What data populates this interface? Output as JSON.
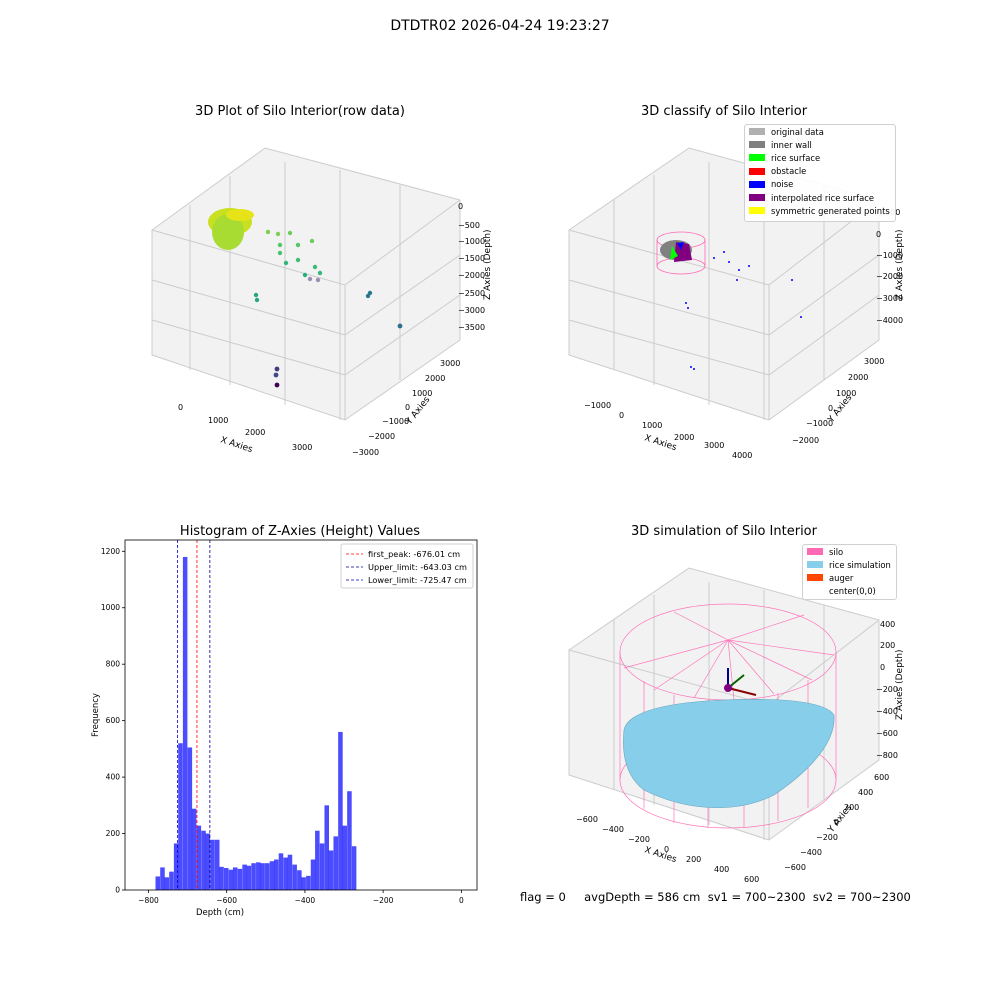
{
  "suptitle": "DTDTR02 2026-04-24 19:23:27",
  "panels": {
    "p1": {
      "title": "3D Plot of Silo Interior(row data)",
      "xlabel": "X Axies",
      "ylabel": "Y Axies",
      "zlabel": "Z Axies (Depth)",
      "xticks": [
        "0",
        "1000",
        "2000",
        "3000"
      ],
      "yticks": [
        "3000",
        "2000",
        "1000",
        "0",
        "−1000",
        "−2000",
        "−3000"
      ],
      "zticks": [
        "0",
        "−500",
        "−1000",
        "−1500",
        "−2000",
        "−2500",
        "−3000",
        "−3500"
      ]
    },
    "p2": {
      "title": "3D classify of Silo Interior",
      "xlabel": "X Axies",
      "ylabel": "Y Axies",
      "zlabel": "Z Axies (Depth)",
      "xticks": [
        "−1000",
        "0",
        "1000",
        "2000",
        "3000",
        "4000"
      ],
      "yticks": [
        "3000",
        "2000",
        "1000",
        "0",
        "−1000",
        "−2000"
      ],
      "zticks": [
        "2000",
        "0",
        "−1000",
        "−2000",
        "−3000",
        "−4000"
      ],
      "legend": [
        {
          "label": "original data",
          "color": "#b0b0b0"
        },
        {
          "label": "inner wall",
          "color": "#808080"
        },
        {
          "label": "rice surface",
          "color": "#00ff00"
        },
        {
          "label": "obstacle",
          "color": "#ff0000"
        },
        {
          "label": "noise",
          "color": "#0000ff"
        },
        {
          "label": "interpolated rice surface",
          "color": "#800080"
        },
        {
          "label": "symmetric generated points",
          "color": "#ffff00"
        }
      ]
    },
    "p4": {
      "title": "3D simulation of Silo Interior",
      "xlabel": "X Axies",
      "ylabel": "Y Axies",
      "zlabel": "Z Axies (Depth)",
      "xticks": [
        "−600",
        "−400",
        "−200",
        "0",
        "200",
        "400",
        "600"
      ],
      "yticks": [
        "600",
        "400",
        "200",
        "0",
        "−200",
        "−400",
        "−600"
      ],
      "zticks": [
        "400",
        "200",
        "0",
        "−200",
        "−400",
        "−600",
        "−800"
      ],
      "legend": [
        {
          "label": "silo",
          "color": "#ff69b4"
        },
        {
          "label": "rice simulation",
          "color": "#87ceeb"
        },
        {
          "label": "auger",
          "color": "#ff4500"
        },
        {
          "label": "center(0,0)",
          "color": "#ffffff"
        }
      ]
    }
  },
  "chart_data": {
    "type": "bar",
    "title": "Histogram of Z-Axies (Height) Values",
    "xlabel": "Depth (cm)",
    "ylabel": "Frequency",
    "xlim": [
      -860,
      40
    ],
    "ylim": [
      0,
      1240
    ],
    "xticks": [
      -800,
      -600,
      -400,
      -200,
      0
    ],
    "yticks": [
      0,
      200,
      400,
      600,
      800,
      1000,
      1200
    ],
    "bar_color": "#0000ff",
    "bin_width": 11.6,
    "bins": [
      {
        "x": -782,
        "v": 48
      },
      {
        "x": -770,
        "v": 80
      },
      {
        "x": -759,
        "v": 45
      },
      {
        "x": -747,
        "v": 65
      },
      {
        "x": -735,
        "v": 165
      },
      {
        "x": -724,
        "v": 520
      },
      {
        "x": -712,
        "v": 1180
      },
      {
        "x": -700,
        "v": 505
      },
      {
        "x": -689,
        "v": 288
      },
      {
        "x": -677,
        "v": 228
      },
      {
        "x": -665,
        "v": 210
      },
      {
        "x": -654,
        "v": 200
      },
      {
        "x": -642,
        "v": 178
      },
      {
        "x": -630,
        "v": 178
      },
      {
        "x": -619,
        "v": 82
      },
      {
        "x": -607,
        "v": 78
      },
      {
        "x": -595,
        "v": 72
      },
      {
        "x": -584,
        "v": 80
      },
      {
        "x": -572,
        "v": 75
      },
      {
        "x": -560,
        "v": 90
      },
      {
        "x": -549,
        "v": 86
      },
      {
        "x": -537,
        "v": 95
      },
      {
        "x": -525,
        "v": 98
      },
      {
        "x": -514,
        "v": 95
      },
      {
        "x": -502,
        "v": 95
      },
      {
        "x": -490,
        "v": 102
      },
      {
        "x": -479,
        "v": 108
      },
      {
        "x": -467,
        "v": 130
      },
      {
        "x": -455,
        "v": 115
      },
      {
        "x": -444,
        "v": 125
      },
      {
        "x": -432,
        "v": 90
      },
      {
        "x": -420,
        "v": 70
      },
      {
        "x": -409,
        "v": 45
      },
      {
        "x": -397,
        "v": 50
      },
      {
        "x": -385,
        "v": 108
      },
      {
        "x": -374,
        "v": 210
      },
      {
        "x": -362,
        "v": 165
      },
      {
        "x": -350,
        "v": 300
      },
      {
        "x": -339,
        "v": 140
      },
      {
        "x": -327,
        "v": 190
      },
      {
        "x": -315,
        "v": 560
      },
      {
        "x": -304,
        "v": 228
      },
      {
        "x": -292,
        "v": 350
      },
      {
        "x": -280,
        "v": 155
      }
    ],
    "lines": [
      {
        "label": "first_peak: -676.01 cm",
        "x": -676.01,
        "color": "#ff0000"
      },
      {
        "label": "Upper_limit: -643.03 cm",
        "x": -643.03,
        "color": "#00008b"
      },
      {
        "label": "Lower_limit: -725.47 cm",
        "x": -725.47,
        "color": "#0000cd"
      }
    ]
  },
  "status": {
    "text": "flag = 0     avgDepth = 586 cm  sv1 = 700~2300  sv2 = 700~2300"
  }
}
